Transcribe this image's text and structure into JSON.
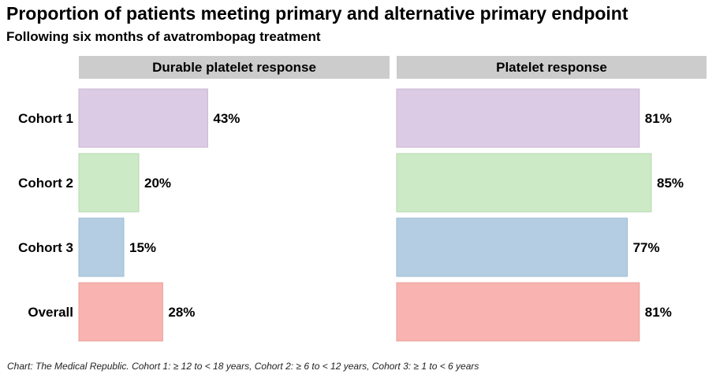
{
  "title": "Proportion of patients meeting primary and alternative primary endpoint",
  "subtitle": "Following six months of avatrombopag treatment",
  "source": "Chart: The Medical Republic. Cohort 1: ≥ 12 to < 18 years, Cohort 2: ≥ 6 to < 12 years, Cohort 3: ≥ 1 to < 6 years",
  "chart_data": {
    "type": "bar",
    "orientation": "horizontal",
    "categories": [
      "Cohort 1",
      "Cohort 2",
      "Cohort 3",
      "Overall"
    ],
    "value_suffix": "%",
    "panels": [
      {
        "title": "Durable platelet response",
        "values": [
          43,
          20,
          15,
          28
        ]
      },
      {
        "title": "Platelet response",
        "values": [
          81,
          85,
          77,
          81
        ]
      }
    ],
    "bar_colors": [
      "#dccbe4",
      "#cceac6",
      "#b4cde2",
      "#f9b3b0"
    ],
    "bar_edge_colors": [
      "#c8b6d2",
      "#b6d8b0",
      "#9fbbd3",
      "#e9a09c"
    ],
    "header_color": "#cccccc",
    "xlim": [
      0,
      100
    ],
    "grid": false
  }
}
